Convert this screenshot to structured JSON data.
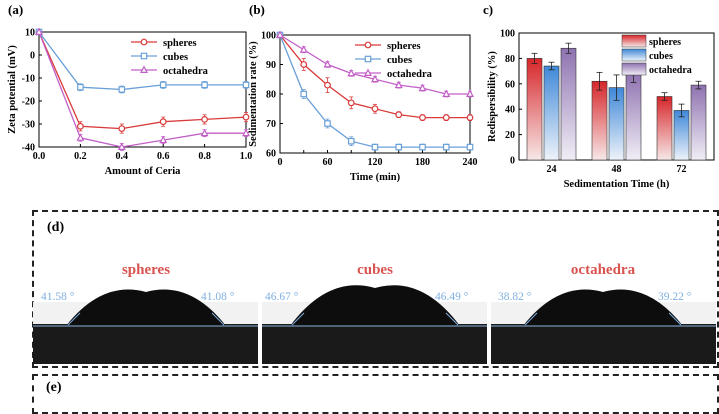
{
  "colors": {
    "spheres": "#d93a3a",
    "cubes": "#6aa0d8",
    "octahedra": "#c25fc7",
    "angle_text": "#7fb0e0",
    "sample_label": "#d9534f"
  },
  "panels": {
    "a": {
      "label": "(a)"
    },
    "b": {
      "label": "(b)"
    },
    "c": {
      "label": "c)"
    },
    "d": {
      "label": "(d)"
    },
    "e": {
      "label": "(e)"
    }
  },
  "chart_data": [
    {
      "id": "a",
      "type": "line",
      "xlabel": "Amount of Ceria",
      "ylabel": "Zeta potential (mV)",
      "xlim": [
        0.0,
        1.0
      ],
      "ylim": [
        -40,
        10
      ],
      "xticks": [
        "0.0",
        "0.2",
        "0.4",
        "0.6",
        "0.8",
        "1.0"
      ],
      "yticks": [
        "10",
        "0",
        "-10",
        "-20",
        "-30",
        "-40"
      ],
      "legend_position": "top-right",
      "x": [
        0.0,
        0.2,
        0.4,
        0.6,
        0.8,
        1.0
      ],
      "series": [
        {
          "name": "spheres",
          "color": "#d93a3a",
          "marker": "circle",
          "values": [
            10,
            -31,
            -32,
            -29,
            -28,
            -27
          ],
          "errors": [
            0,
            2,
            2,
            2,
            2,
            2
          ]
        },
        {
          "name": "cubes",
          "color": "#6aa0d8",
          "marker": "square",
          "values": [
            10,
            -14,
            -15,
            -13,
            -13,
            -13
          ],
          "errors": [
            0,
            1.5,
            1.5,
            1.5,
            1.5,
            1.5
          ]
        },
        {
          "name": "octahedra",
          "color": "#c25fc7",
          "marker": "triangle",
          "values": [
            10,
            -36,
            -40,
            -37,
            -34,
            -34
          ],
          "errors": [
            0,
            1.5,
            1.5,
            1.5,
            1.5,
            1.5
          ]
        }
      ]
    },
    {
      "id": "b",
      "type": "line",
      "xlabel": "Time (min)",
      "ylabel": "Sedimentation rate (%)",
      "xlim": [
        0,
        240
      ],
      "ylim": [
        60,
        100
      ],
      "xticks": [
        "0",
        "30",
        "60",
        "90",
        "120",
        "150",
        "180",
        "210",
        "240"
      ],
      "xtick_labels": [
        "0",
        "60",
        "120",
        "180",
        "240"
      ],
      "yticks": [
        "100",
        "90",
        "80",
        "70",
        "60"
      ],
      "legend_position": "top-right",
      "x": [
        0,
        30,
        60,
        90,
        120,
        150,
        180,
        210,
        240
      ],
      "series": [
        {
          "name": "spheres",
          "color": "#d93a3a",
          "marker": "circle",
          "values": [
            100,
            90,
            83,
            77,
            75,
            73,
            72,
            72,
            72
          ],
          "errors": [
            0,
            2,
            2.5,
            2,
            1.5,
            1,
            1,
            1,
            1
          ]
        },
        {
          "name": "cubes",
          "color": "#6aa0d8",
          "marker": "square",
          "values": [
            100,
            80,
            70,
            64,
            62,
            62,
            62,
            62,
            62
          ],
          "errors": [
            0,
            1.5,
            1.5,
            1.5,
            1,
            1,
            1,
            1,
            1
          ]
        },
        {
          "name": "octahedra",
          "color": "#c25fc7",
          "marker": "triangle",
          "values": [
            100,
            95,
            90,
            87,
            85,
            83,
            82,
            80,
            80
          ],
          "errors": [
            0,
            1,
            1,
            1,
            1,
            1,
            1,
            1,
            1
          ]
        }
      ]
    },
    {
      "id": "c",
      "type": "bar",
      "xlabel": "Sedimentation Time (h)",
      "ylabel": "Redispersibility (%)",
      "ylim": [
        0,
        100
      ],
      "yticks": [
        "100",
        "80",
        "60",
        "40",
        "20",
        "0"
      ],
      "categories": [
        "24",
        "48",
        "72"
      ],
      "legend_position": "top-right",
      "series": [
        {
          "name": "spheres",
          "color": "#d93a3a",
          "values": [
            80,
            62,
            50
          ],
          "errors": [
            4,
            7,
            3
          ]
        },
        {
          "name": "cubes",
          "color": "#6aa0d8",
          "values": [
            74,
            57,
            39
          ],
          "errors": [
            3,
            10,
            5
          ]
        },
        {
          "name": "octahedra",
          "color": "#9d86b8",
          "values": [
            88,
            68,
            59
          ],
          "errors": [
            4,
            7,
            3
          ]
        }
      ]
    }
  ],
  "droplets": [
    {
      "name": "spheres",
      "left_angle": "41.58 °",
      "right_angle": "41.08 °"
    },
    {
      "name": "cubes",
      "left_angle": "46.67 °",
      "right_angle": "46.49 °"
    },
    {
      "name": "octahedra",
      "left_angle": "38.82 °",
      "right_angle": "39.22 °"
    }
  ]
}
